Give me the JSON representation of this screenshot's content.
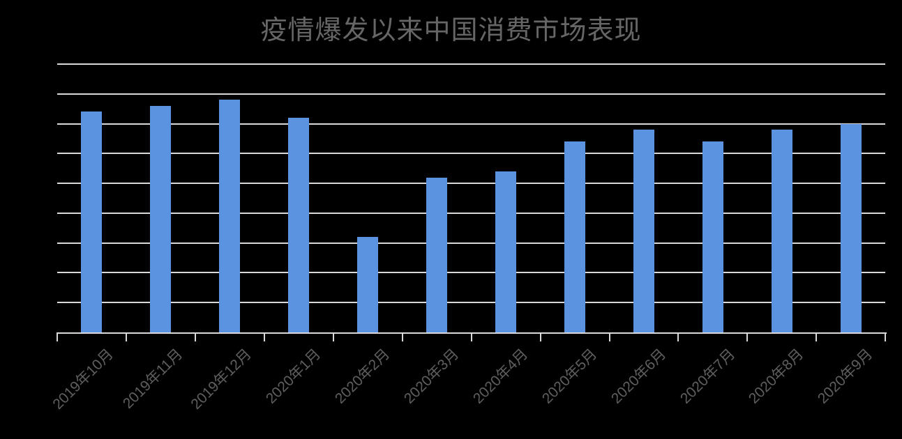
{
  "title": "疫情爆发以来中国消费市场表现",
  "colors": {
    "background": "#000000",
    "bar": "#5b93e1",
    "gridline": "#d9d9d9",
    "axis": "#d9d9d9",
    "title_text": "#666666",
    "axis_label_text": "#5f5f5f"
  },
  "chart_data": {
    "type": "bar",
    "title": "疫情爆发以来中国消费市场表现",
    "categories": [
      "2019年10月",
      "2019年11月",
      "2019年12月",
      "2020年1月",
      "2020年2月",
      "2020年3月",
      "2020年4月",
      "2020年5月",
      "2020年6月",
      "2020年7月",
      "2020年8月",
      "2020年9月"
    ],
    "values": [
      7.4,
      7.6,
      7.8,
      7.2,
      3.2,
      5.2,
      5.4,
      6.4,
      6.8,
      6.4,
      6.8,
      7.0
    ],
    "xlabel": "",
    "ylabel": "",
    "ylim": [
      0,
      9
    ],
    "gridline_interval": 1,
    "y_tick_labels_visible": false,
    "grid": "on",
    "legend": "none",
    "x_tick_label_rotation_deg": -45
  }
}
